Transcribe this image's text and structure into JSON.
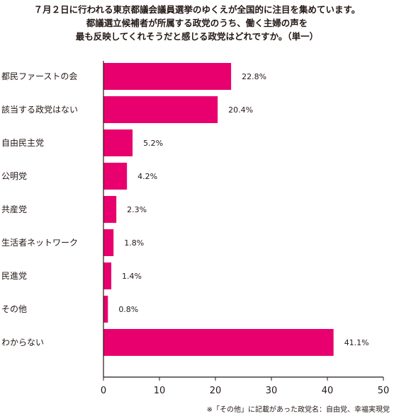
{
  "chart_data": {
    "type": "bar",
    "orientation": "horizontal",
    "title_lines": [
      "７月２日に行われる東京都議会議員選挙のゆくえが全国的に注目を集めています。",
      "都議選立候補者が所属する政党のうち、働く主婦の声を",
      "最も反映してくれそうだと感じる政党はどれですか。（単一）"
    ],
    "categories": [
      "都民ファーストの会",
      "該当する政党はない",
      "自由民主党",
      "公明党",
      "共産党",
      "生活者ネットワーク",
      "民進党",
      "その他",
      "わからない"
    ],
    "values": [
      22.8,
      20.4,
      5.2,
      4.2,
      2.3,
      1.8,
      1.4,
      0.8,
      41.1
    ],
    "value_labels": [
      "22.8%",
      "20.4%",
      "5.2%",
      "4.2%",
      "2.3%",
      "1.8%",
      "1.4%",
      "0.8%",
      "41.1%"
    ],
    "xlim": [
      0,
      50
    ],
    "xticks": [
      0,
      10,
      20,
      30,
      40,
      50
    ],
    "bar_color": "#e8006e",
    "grid": false,
    "footnote": "※「その他」に記載があった政党名：自由党、幸福実現党"
  }
}
